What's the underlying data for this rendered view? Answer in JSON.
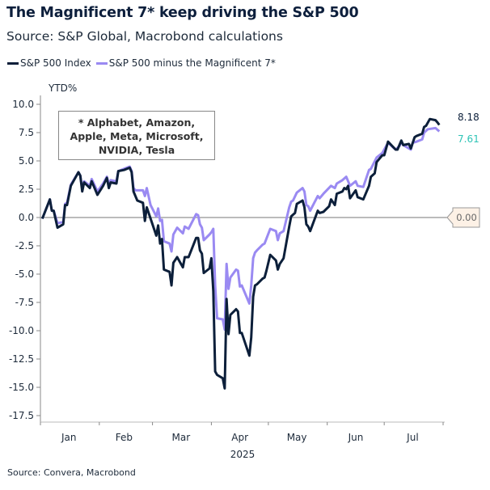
{
  "header": {
    "title": "The Magnificent 7* keep driving the S&P 500",
    "subtitle": "Source: S&P Global, Macrobond calculations"
  },
  "footer": {
    "source": "Source: Convera, Macrobond"
  },
  "annotation": {
    "lines": [
      "* Alphabet, Amazon,",
      "Apple, Meta, Microsoft,",
      "NVIDIA, Tesla"
    ]
  },
  "colors": {
    "sp500": "#0c1f3a",
    "ex_mag7": "#9a8af2",
    "last_ex_mag7_label": "#2ec4b6",
    "zero_label_bg": "#fdf1e6"
  },
  "chart_data": {
    "type": "line",
    "title": "The Magnificent 7* keep driving the S&P 500",
    "ylabel": "YTD%",
    "xlabel": "2025",
    "ylim": [
      -17.5,
      10.0
    ],
    "yticks": [
      "10.0",
      "7.5",
      "5.0",
      "2.5",
      "0.0",
      "-2.5",
      "-5.0",
      "-7.5",
      "-10.0",
      "-12.5",
      "-15.0",
      "-17.5"
    ],
    "xlim": [
      "2025-01-01",
      "2025-08-01"
    ],
    "xticks": [
      "Jan",
      "Feb",
      "Mar",
      "Apr",
      "May",
      "Jun",
      "Jul"
    ],
    "grid": false,
    "legend": "top-left",
    "reference_line": {
      "value": 0.0,
      "label": "0.00"
    },
    "last_value_labels": [
      "8.18",
      "7.61"
    ],
    "series": [
      {
        "name": "S&P 500 Index",
        "x": [
          "2025-01-02",
          "2025-01-06",
          "2025-01-07",
          "2025-01-08",
          "2025-01-10",
          "2025-01-13",
          "2025-01-14",
          "2025-01-15",
          "2025-01-17",
          "2025-01-21",
          "2025-01-22",
          "2025-01-23",
          "2025-01-24",
          "2025-01-27",
          "2025-01-28",
          "2025-01-31",
          "2025-02-03",
          "2025-02-05",
          "2025-02-06",
          "2025-02-07",
          "2025-02-10",
          "2025-02-11",
          "2025-02-14",
          "2025-02-17",
          "2025-02-18",
          "2025-02-19",
          "2025-02-21",
          "2025-02-24",
          "2025-02-25",
          "2025-02-26",
          "2025-03-03",
          "2025-03-04",
          "2025-03-05",
          "2025-03-06",
          "2025-03-07",
          "2025-03-10",
          "2025-03-11",
          "2025-03-12",
          "2025-03-14",
          "2025-03-17",
          "2025-03-18",
          "2025-03-20",
          "2025-03-24",
          "2025-03-25",
          "2025-03-26",
          "2025-03-27",
          "2025-03-28",
          "2025-03-31",
          "2025-04-01",
          "2025-04-02",
          "2025-04-03",
          "2025-04-04",
          "2025-04-07",
          "2025-04-08",
          "2025-04-09",
          "2025-04-10",
          "2025-04-11",
          "2025-04-14",
          "2025-04-15",
          "2025-04-16",
          "2025-04-17",
          "2025-04-21",
          "2025-04-22",
          "2025-04-23",
          "2025-04-24",
          "2025-04-25",
          "2025-04-28",
          "2025-04-29",
          "2025-04-30",
          "2025-05-02",
          "2025-05-05",
          "2025-05-06",
          "2025-05-07",
          "2025-05-09",
          "2025-05-12",
          "2025-05-13",
          "2025-05-15",
          "2025-05-16",
          "2025-05-19",
          "2025-05-20",
          "2025-05-21",
          "2025-05-22",
          "2025-05-23",
          "2025-05-27",
          "2025-05-28",
          "2025-05-30",
          "2025-06-02",
          "2025-06-03",
          "2025-06-05",
          "2025-06-06",
          "2025-06-09",
          "2025-06-10",
          "2025-06-11",
          "2025-06-12",
          "2025-06-13",
          "2025-06-16",
          "2025-06-17",
          "2025-06-20",
          "2025-06-23",
          "2025-06-24",
          "2025-06-26",
          "2025-06-27",
          "2025-06-30",
          "2025-07-01",
          "2025-07-03",
          "2025-07-07",
          "2025-07-08",
          "2025-07-10",
          "2025-07-11",
          "2025-07-14",
          "2025-07-15",
          "2025-07-17",
          "2025-07-18",
          "2025-07-21",
          "2025-07-22",
          "2025-07-23",
          "2025-07-25",
          "2025-07-28",
          "2025-07-29",
          "2025-07-30"
        ],
        "values": [
          -0.1,
          1.6,
          0.6,
          0.6,
          -0.9,
          -0.6,
          1.1,
          1.1,
          2.8,
          4.0,
          3.7,
          2.3,
          3.1,
          2.6,
          3.2,
          2.0,
          2.8,
          3.5,
          2.6,
          3.1,
          3.0,
          4.1,
          4.2,
          4.4,
          4.0,
          2.3,
          1.5,
          1.3,
          -0.3,
          0.9,
          -1.6,
          -0.7,
          -2.3,
          -1.9,
          -4.6,
          -4.8,
          -6.0,
          -4.0,
          -3.5,
          -4.4,
          -3.5,
          -3.5,
          -1.8,
          -1.8,
          -2.9,
          -3.2,
          -4.9,
          -4.5,
          -3.6,
          -6.5,
          -13.6,
          -13.9,
          -14.2,
          -15.1,
          -7.2,
          -10.3,
          -8.6,
          -8.1,
          -8.3,
          -10.2,
          -10.2,
          -12.2,
          -10.6,
          -7.0,
          -6.0,
          -5.9,
          -5.4,
          -5.3,
          -4.7,
          -3.3,
          -3.8,
          -4.6,
          -4.1,
          -3.6,
          -0.8,
          0.1,
          0.4,
          1.2,
          1.5,
          0.9,
          -0.6,
          -0.8,
          -1.2,
          0.6,
          0.4,
          0.5,
          1.0,
          1.6,
          1.1,
          2.1,
          2.3,
          2.6,
          2.5,
          2.8,
          1.7,
          2.4,
          1.8,
          1.6,
          2.8,
          3.6,
          3.9,
          4.9,
          5.5,
          5.5,
          6.7,
          6.0,
          6.0,
          6.8,
          6.4,
          6.5,
          6.1,
          7.1,
          7.2,
          7.4,
          8.0,
          8.1,
          8.7,
          8.6,
          8.4,
          8.18
        ]
      },
      {
        "name": "S&P 500 minus the Magnificent 7*",
        "x": [
          "2025-01-02",
          "2025-01-06",
          "2025-01-07",
          "2025-01-08",
          "2025-01-10",
          "2025-01-13",
          "2025-01-14",
          "2025-01-15",
          "2025-01-17",
          "2025-01-21",
          "2025-01-22",
          "2025-01-23",
          "2025-01-24",
          "2025-01-27",
          "2025-01-28",
          "2025-01-31",
          "2025-02-03",
          "2025-02-05",
          "2025-02-06",
          "2025-02-07",
          "2025-02-10",
          "2025-02-11",
          "2025-02-14",
          "2025-02-17",
          "2025-02-18",
          "2025-02-19",
          "2025-02-20",
          "2025-02-24",
          "2025-02-25",
          "2025-02-26",
          "2025-02-28",
          "2025-03-03",
          "2025-03-04",
          "2025-03-05",
          "2025-03-06",
          "2025-03-07",
          "2025-03-10",
          "2025-03-11",
          "2025-03-12",
          "2025-03-14",
          "2025-03-17",
          "2025-03-18",
          "2025-03-20",
          "2025-03-24",
          "2025-03-25",
          "2025-03-26",
          "2025-03-27",
          "2025-03-28",
          "2025-03-31",
          "2025-04-01",
          "2025-04-02",
          "2025-04-03",
          "2025-04-04",
          "2025-04-07",
          "2025-04-08",
          "2025-04-09",
          "2025-04-10",
          "2025-04-11",
          "2025-04-14",
          "2025-04-15",
          "2025-04-16",
          "2025-04-17",
          "2025-04-21",
          "2025-04-22",
          "2025-04-23",
          "2025-04-24",
          "2025-04-25",
          "2025-04-28",
          "2025-04-29",
          "2025-05-02",
          "2025-05-05",
          "2025-05-06",
          "2025-05-07",
          "2025-05-09",
          "2025-05-12",
          "2025-05-13",
          "2025-05-14",
          "2025-05-16",
          "2025-05-19",
          "2025-05-20",
          "2025-05-21",
          "2025-05-22",
          "2025-05-23",
          "2025-05-27",
          "2025-05-28",
          "2025-05-30",
          "2025-06-03",
          "2025-06-05",
          "2025-06-06",
          "2025-06-09",
          "2025-06-11",
          "2025-06-13",
          "2025-06-16",
          "2025-06-17",
          "2025-06-20",
          "2025-06-23",
          "2025-06-24",
          "2025-06-27",
          "2025-06-30",
          "2025-07-02",
          "2025-07-03",
          "2025-07-07",
          "2025-07-09",
          "2025-07-10",
          "2025-07-11",
          "2025-07-15",
          "2025-07-16",
          "2025-07-18",
          "2025-07-21",
          "2025-07-22",
          "2025-07-24",
          "2025-07-28",
          "2025-07-30"
        ],
        "values": [
          -0.1,
          1.6,
          0.6,
          0.6,
          -0.5,
          -0.4,
          1.2,
          1.3,
          2.9,
          4.0,
          3.7,
          2.5,
          3.2,
          2.8,
          3.4,
          2.3,
          3.0,
          3.6,
          2.9,
          3.3,
          3.2,
          4.1,
          4.3,
          4.5,
          4.1,
          2.6,
          2.4,
          2.4,
          1.9,
          2.6,
          1.1,
          0.1,
          0.8,
          -0.3,
          -0.2,
          -2.1,
          -2.3,
          -3.0,
          -1.5,
          -0.9,
          -1.4,
          -0.8,
          -1.0,
          0.3,
          0.2,
          -0.6,
          -0.9,
          -2.0,
          -1.5,
          -1.3,
          -1.0,
          -6.0,
          -8.9,
          -9.0,
          -9.9,
          -4.1,
          -6.3,
          -5.3,
          -4.6,
          -4.7,
          -6.1,
          -6.0,
          -7.6,
          -6.0,
          -3.6,
          -3.1,
          -2.9,
          -2.4,
          -2.3,
          -1.0,
          -1.2,
          -2.0,
          -1.4,
          -1.2,
          0.9,
          1.4,
          1.5,
          2.2,
          2.6,
          2.3,
          1.1,
          1.0,
          0.6,
          1.9,
          1.7,
          2.1,
          2.8,
          2.6,
          3.0,
          3.3,
          3.6,
          2.8,
          3.2,
          2.8,
          2.7,
          4.2,
          4.3,
          5.3,
          5.7,
          6.3,
          6.6,
          6.0,
          6.3,
          6.7,
          6.4,
          6.0,
          6.6,
          6.7,
          6.9,
          7.5,
          7.8,
          7.9,
          7.61
        ]
      }
    ]
  }
}
